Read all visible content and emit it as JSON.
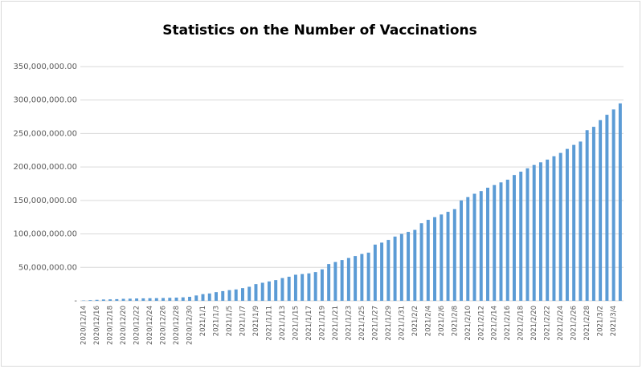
{
  "chart_data": {
    "type": "bar",
    "title": "Statistics on the Number of Vaccinations",
    "categories": [
      "2020/12/14",
      null,
      "2020/12/16",
      null,
      "2020/12/18",
      null,
      "2020/12/20",
      null,
      "2020/12/22",
      null,
      "2020/12/24",
      null,
      "2020/12/26",
      null,
      "2020/12/28",
      null,
      "2020/12/30",
      null,
      "2021/1/1",
      null,
      "2021/1/3",
      null,
      "2021/1/5",
      null,
      "2021/1/7",
      null,
      "2021/1/9",
      null,
      "2021/1/11",
      null,
      "2021/1/13",
      null,
      "2021/1/15",
      null,
      "2021/1/17",
      null,
      "2021/1/19",
      null,
      "2021/1/21",
      null,
      "2021/1/23",
      null,
      "2021/1/25",
      null,
      "2021/1/27",
      null,
      "2021/1/29",
      null,
      "2021/1/31",
      null,
      "2021/2/2",
      null,
      "2021/2/4",
      null,
      "2021/2/6",
      null,
      "2021/2/8",
      null,
      "2021/2/10",
      null,
      "2021/2/12",
      null,
      "2021/2/14",
      null,
      "2021/2/16",
      null,
      "2021/2/18",
      null,
      "2021/2/20",
      null,
      "2021/2/22",
      null,
      "2021/2/24",
      null,
      "2021/2/26",
      null,
      "2021/2/28",
      null,
      "2021/3/2",
      null,
      "2021/3/4",
      null
    ],
    "values": [
      500000,
      1000000,
      1500000,
      2000000,
      2200000,
      2500000,
      3000000,
      3200000,
      3500000,
      3700000,
      3900000,
      4000000,
      4200000,
      4500000,
      4800000,
      5200000,
      6000000,
      8000000,
      10000000,
      11000000,
      13000000,
      14500000,
      16000000,
      17000000,
      19000000,
      21000000,
      25000000,
      27000000,
      29000000,
      31000000,
      34000000,
      36000000,
      39000000,
      40000000,
      41000000,
      43000000,
      47000000,
      55000000,
      58000000,
      61000000,
      64000000,
      67000000,
      70000000,
      72000000,
      84000000,
      87000000,
      91000000,
      96000000,
      100000000,
      103000000,
      106000000,
      116000000,
      121000000,
      125000000,
      129000000,
      133000000,
      137000000,
      150000000,
      155000000,
      160000000,
      164000000,
      169000000,
      173000000,
      177000000,
      181000000,
      188000000,
      193000000,
      198000000,
      203000000,
      207000000,
      211000000,
      216000000,
      221000000,
      227000000,
      233000000,
      238000000,
      255000000,
      260000000,
      270000000,
      278000000,
      286000000,
      295000000
    ],
    "color": "#5b9bd5",
    "ylim": [
      0,
      350000000
    ],
    "yticks": [
      {
        "value": 0,
        "label": "-"
      },
      {
        "value": 50000000,
        "label": "50,000,000.00"
      },
      {
        "value": 100000000,
        "label": "100,000,000.00"
      },
      {
        "value": 150000000,
        "label": "150,000,000.00"
      },
      {
        "value": 200000000,
        "label": "200,000,000.00"
      },
      {
        "value": 250000000,
        "label": "250,000,000.00"
      },
      {
        "value": 300000000,
        "label": "300,000,000.00"
      },
      {
        "value": 350000000,
        "label": "350,000,000.00"
      }
    ],
    "grid": true
  }
}
